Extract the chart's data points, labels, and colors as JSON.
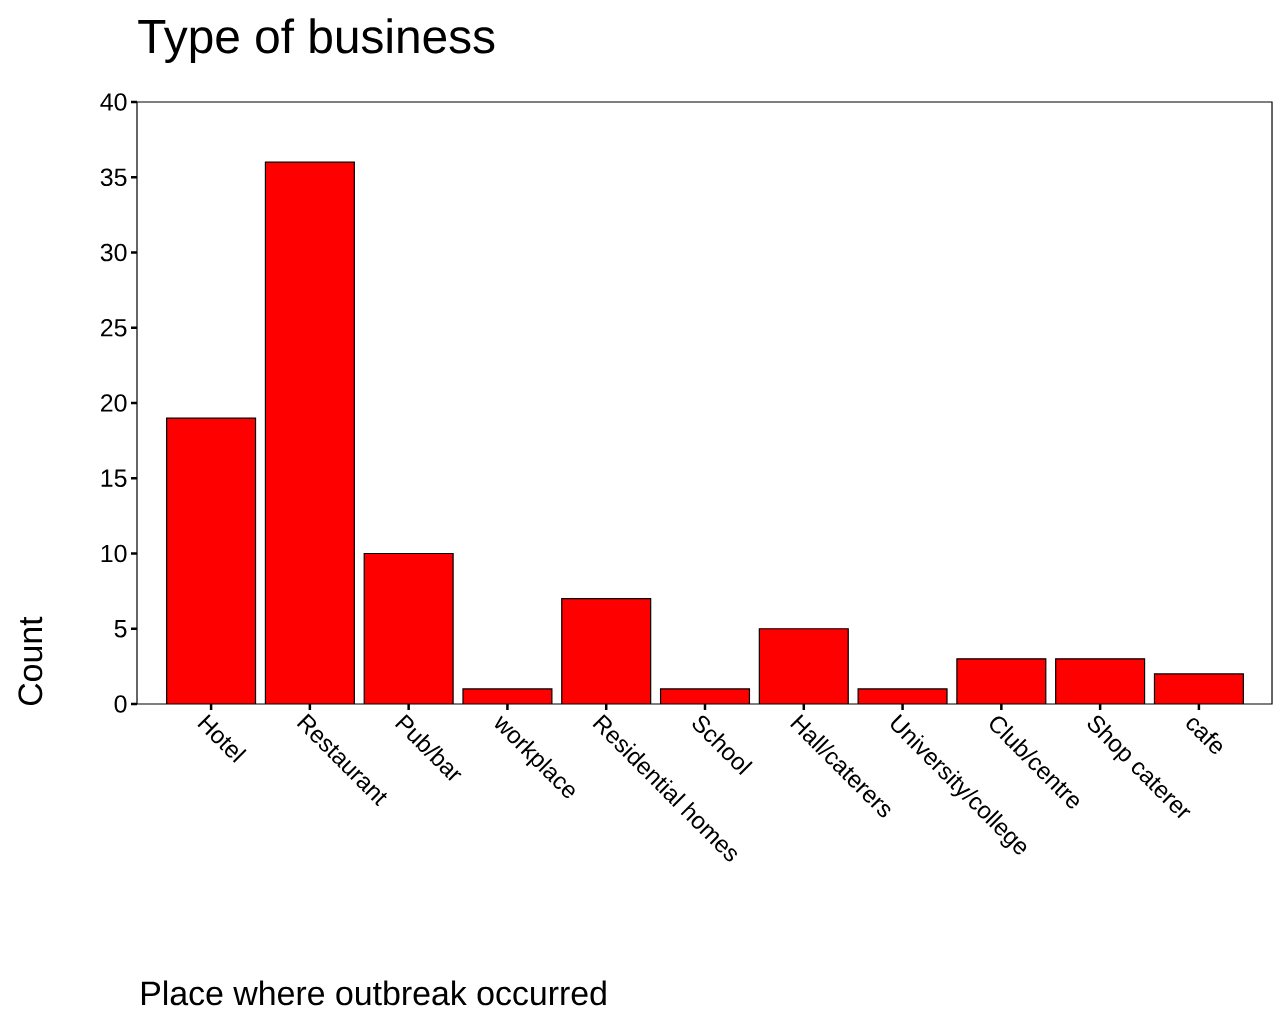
{
  "chart_data": {
    "type": "bar",
    "title": "Type of business",
    "xlabel": "Place where outbreak occurred",
    "ylabel": "Count",
    "categories": [
      "Hotel",
      "Restaurant",
      "Pub/bar",
      "workplace",
      "Residential homes",
      "School",
      "Hall/caterers",
      "University/college",
      "Club/centre",
      "Shop caterer",
      "cafe"
    ],
    "values": [
      19,
      36,
      10,
      1,
      7,
      1,
      5,
      1,
      3,
      3,
      2
    ],
    "color": "#ff0000",
    "ylim": [
      0,
      40
    ],
    "yticks": [
      0,
      5,
      10,
      15,
      20,
      25,
      30,
      35,
      40
    ]
  }
}
